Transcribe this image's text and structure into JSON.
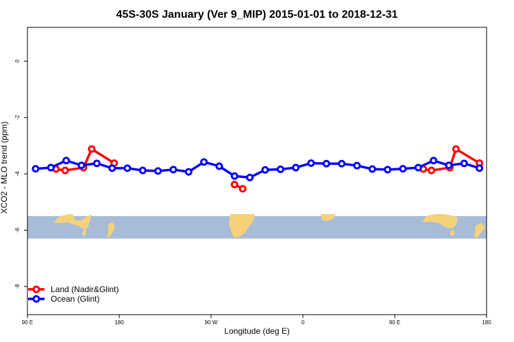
{
  "chart_data": {
    "type": "line",
    "title": "45S-30S January (Ver 9_MIP)   2015-01-01 to 2018-12-31",
    "xlabel": "Longitude (deg E)",
    "ylabel": "XCO2 - MLO trend (ppm)",
    "x_ticks": [
      {
        "value": 90,
        "label": "90 E"
      },
      {
        "value": 180,
        "label": "180"
      },
      {
        "value": 270,
        "label": "90 W"
      },
      {
        "value": 360,
        "label": "0"
      },
      {
        "value": 450,
        "label": "90 E"
      },
      {
        "value": 540,
        "label": "180"
      }
    ],
    "y_ticks": [
      {
        "value": 0,
        "label": "0"
      },
      {
        "value": -2,
        "label": "-2"
      },
      {
        "value": -4,
        "label": "-4"
      },
      {
        "value": -6,
        "label": "-6"
      },
      {
        "value": -8,
        "label": "-8"
      }
    ],
    "xlim": [
      90,
      540
    ],
    "ylim": [
      -9,
      1.2
    ],
    "legend_position": "bottom-left",
    "map_strip": {
      "y_top": -5.5,
      "y_bottom": -6.3,
      "ocean_color": "#a8bcd8",
      "land_color": "#f5d27a"
    },
    "series": [
      {
        "name": "Land (Nadir&Glint)",
        "color": "#ff0000",
        "segments": [
          [
            [
              118,
              -3.83
            ],
            [
              127,
              -3.88
            ],
            [
              145,
              -3.78
            ],
            [
              153,
              -3.12
            ],
            [
              175,
              -3.62
            ]
          ],
          [
            [
              293,
              -4.38
            ],
            [
              301,
              -4.53
            ]
          ],
          [
            [
              478,
              -3.83
            ],
            [
              486,
              -3.88
            ],
            [
              504,
              -3.78
            ],
            [
              510,
              -3.12
            ],
            [
              533,
              -3.62
            ]
          ]
        ]
      },
      {
        "name": "Ocean (Glint)",
        "color": "#0000ff",
        "segments": [
          [
            [
              98,
              -3.82
            ],
            [
              113,
              -3.78
            ],
            [
              128,
              -3.53
            ],
            [
              143,
              -3.7
            ],
            [
              158,
              -3.63
            ],
            [
              173,
              -3.8
            ],
            [
              188,
              -3.8
            ],
            [
              203,
              -3.88
            ],
            [
              218,
              -3.9
            ],
            [
              233,
              -3.85
            ],
            [
              248,
              -3.93
            ],
            [
              263,
              -3.58
            ],
            [
              278,
              -3.73
            ],
            [
              293,
              -4.08
            ],
            [
              308,
              -4.13
            ],
            [
              323,
              -3.86
            ],
            [
              338,
              -3.84
            ],
            [
              353,
              -3.78
            ],
            [
              368,
              -3.62
            ],
            [
              383,
              -3.64
            ],
            [
              398,
              -3.64
            ],
            [
              413,
              -3.71
            ],
            [
              428,
              -3.83
            ],
            [
              443,
              -3.85
            ],
            [
              458,
              -3.82
            ],
            [
              473,
              -3.78
            ],
            [
              488,
              -3.53
            ],
            [
              503,
              -3.7
            ],
            [
              518,
              -3.63
            ],
            [
              533,
              -3.8
            ]
          ]
        ]
      }
    ]
  }
}
